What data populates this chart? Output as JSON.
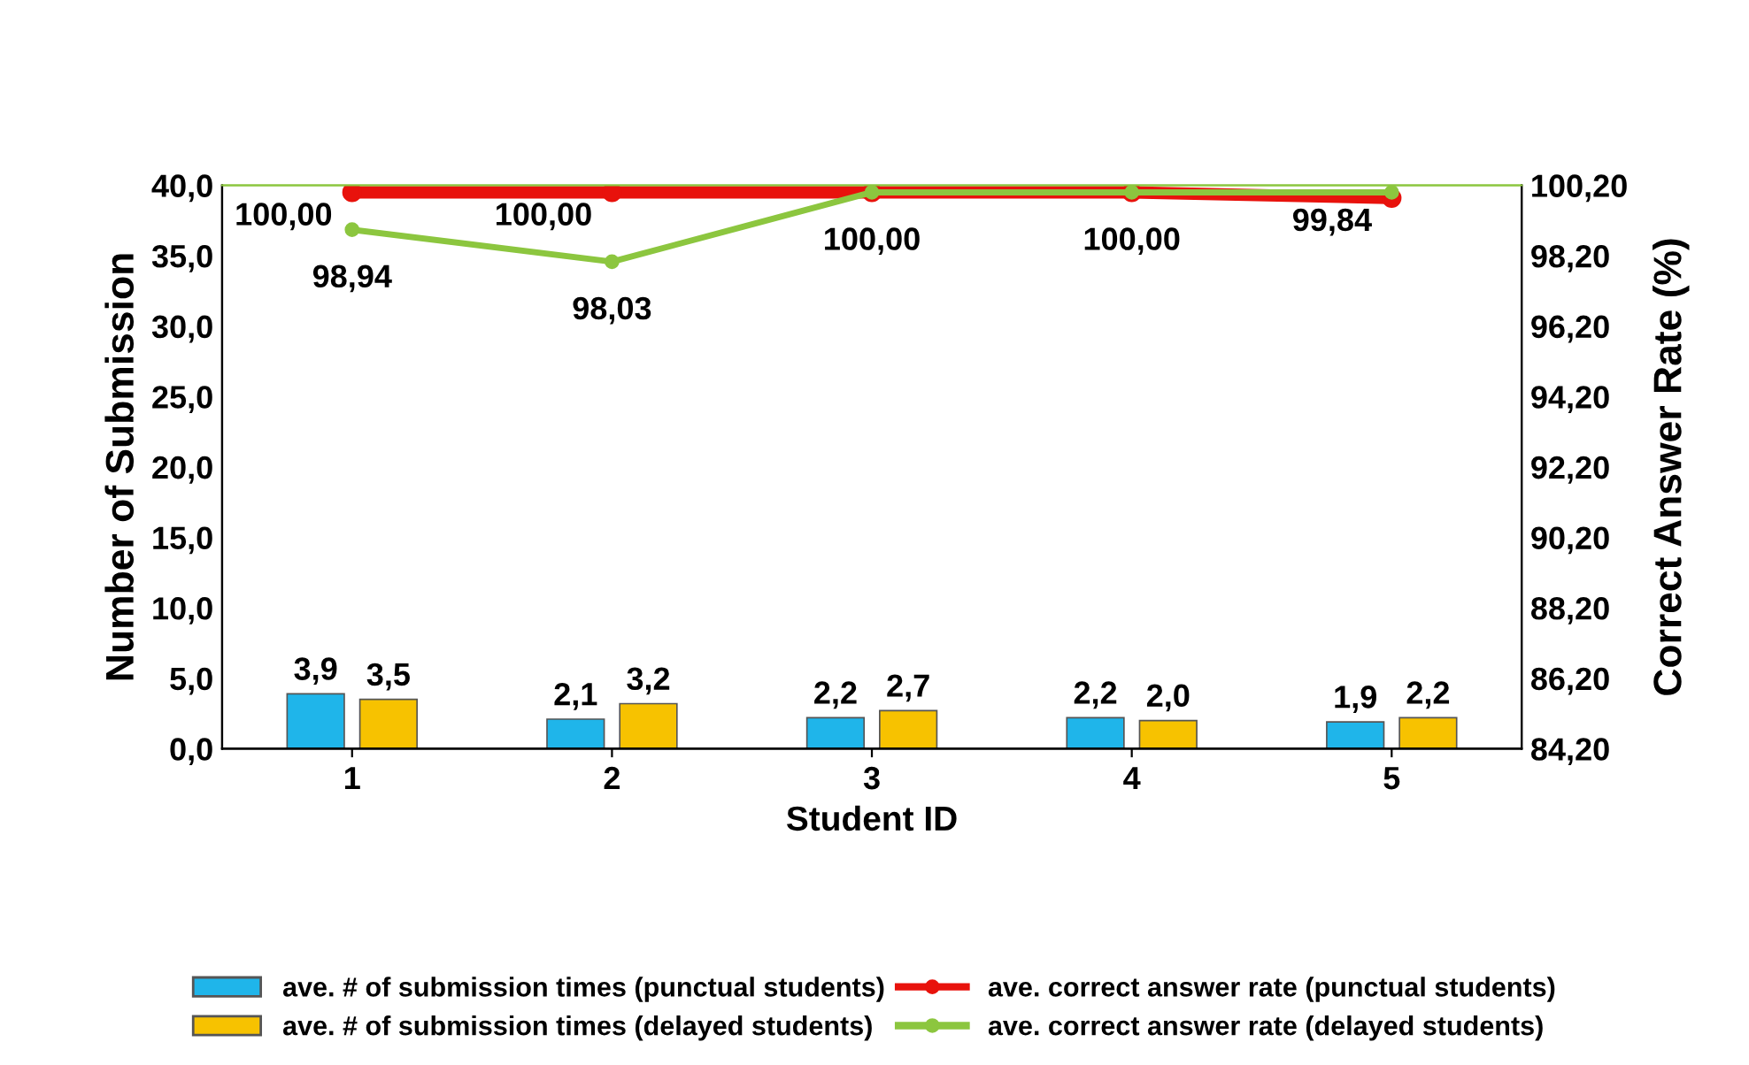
{
  "chart_data": {
    "type": "bar",
    "xlabel": "Student ID",
    "ylabel": "Number of Submission",
    "y2label": "Correct Answer Rate (%)",
    "categories": [
      "1",
      "2",
      "3",
      "4",
      "5"
    ],
    "series": [
      {
        "name": "ave. # of submission times (punctual students)",
        "color": "#1fb5ea",
        "values": [
          3.9,
          2.1,
          2.2,
          2.2,
          1.9
        ],
        "value_labels": [
          "3,9",
          "2,1",
          "2,2",
          "2,2",
          "1,9"
        ]
      },
      {
        "name": "ave. # of submission times (delayed students)",
        "color": "#f7c200",
        "values": [
          3.5,
          3.2,
          2.7,
          2.0,
          2.2
        ],
        "value_labels": [
          "3,5",
          "3,2",
          "2,7",
          "2,0",
          "2,2"
        ]
      },
      {
        "name": "ave. correct answer rate (punctual students)",
        "type": "line",
        "axis": "y2",
        "color": "#e8120c",
        "values": [
          100.0,
          100.0,
          100.0,
          100.0,
          99.84
        ],
        "value_labels": [
          "100,00",
          "100,00",
          null,
          null,
          "99,84"
        ]
      },
      {
        "name": "ave. correct answer rate (delayed students)",
        "type": "line",
        "axis": "y2",
        "color": "#8cc63f",
        "values": [
          98.94,
          98.03,
          100.0,
          100.0,
          100.0
        ],
        "value_labels": [
          "98,94",
          "98,03",
          "100,00",
          "100,00",
          null
        ]
      }
    ],
    "ylim": [
      0,
      40
    ],
    "yticks": [
      {
        "value": 0,
        "label": "0,0"
      },
      {
        "value": 5,
        "label": "5,0"
      },
      {
        "value": 10,
        "label": "10,0"
      },
      {
        "value": 15,
        "label": "15,0"
      },
      {
        "value": 20,
        "label": "20,0"
      },
      {
        "value": 25,
        "label": "25,0"
      },
      {
        "value": 30,
        "label": "30,0"
      },
      {
        "value": 35,
        "label": "35,0"
      },
      {
        "value": 40,
        "label": "40,0"
      }
    ],
    "y2lim": [
      84.2,
      100.2
    ],
    "y2ticks": [
      {
        "value": 84.2,
        "label": "84,20"
      },
      {
        "value": 86.2,
        "label": "86,20"
      },
      {
        "value": 88.2,
        "label": "88,20"
      },
      {
        "value": 90.2,
        "label": "90,20"
      },
      {
        "value": 92.2,
        "label": "92,20"
      },
      {
        "value": 94.2,
        "label": "94,20"
      },
      {
        "value": 96.2,
        "label": "96,20"
      },
      {
        "value": 98.2,
        "label": "98,20"
      },
      {
        "value": 100.2,
        "label": "100,20"
      }
    ],
    "grid": false,
    "legend": "bottom",
    "marker": "circle",
    "line_style": "solid"
  }
}
